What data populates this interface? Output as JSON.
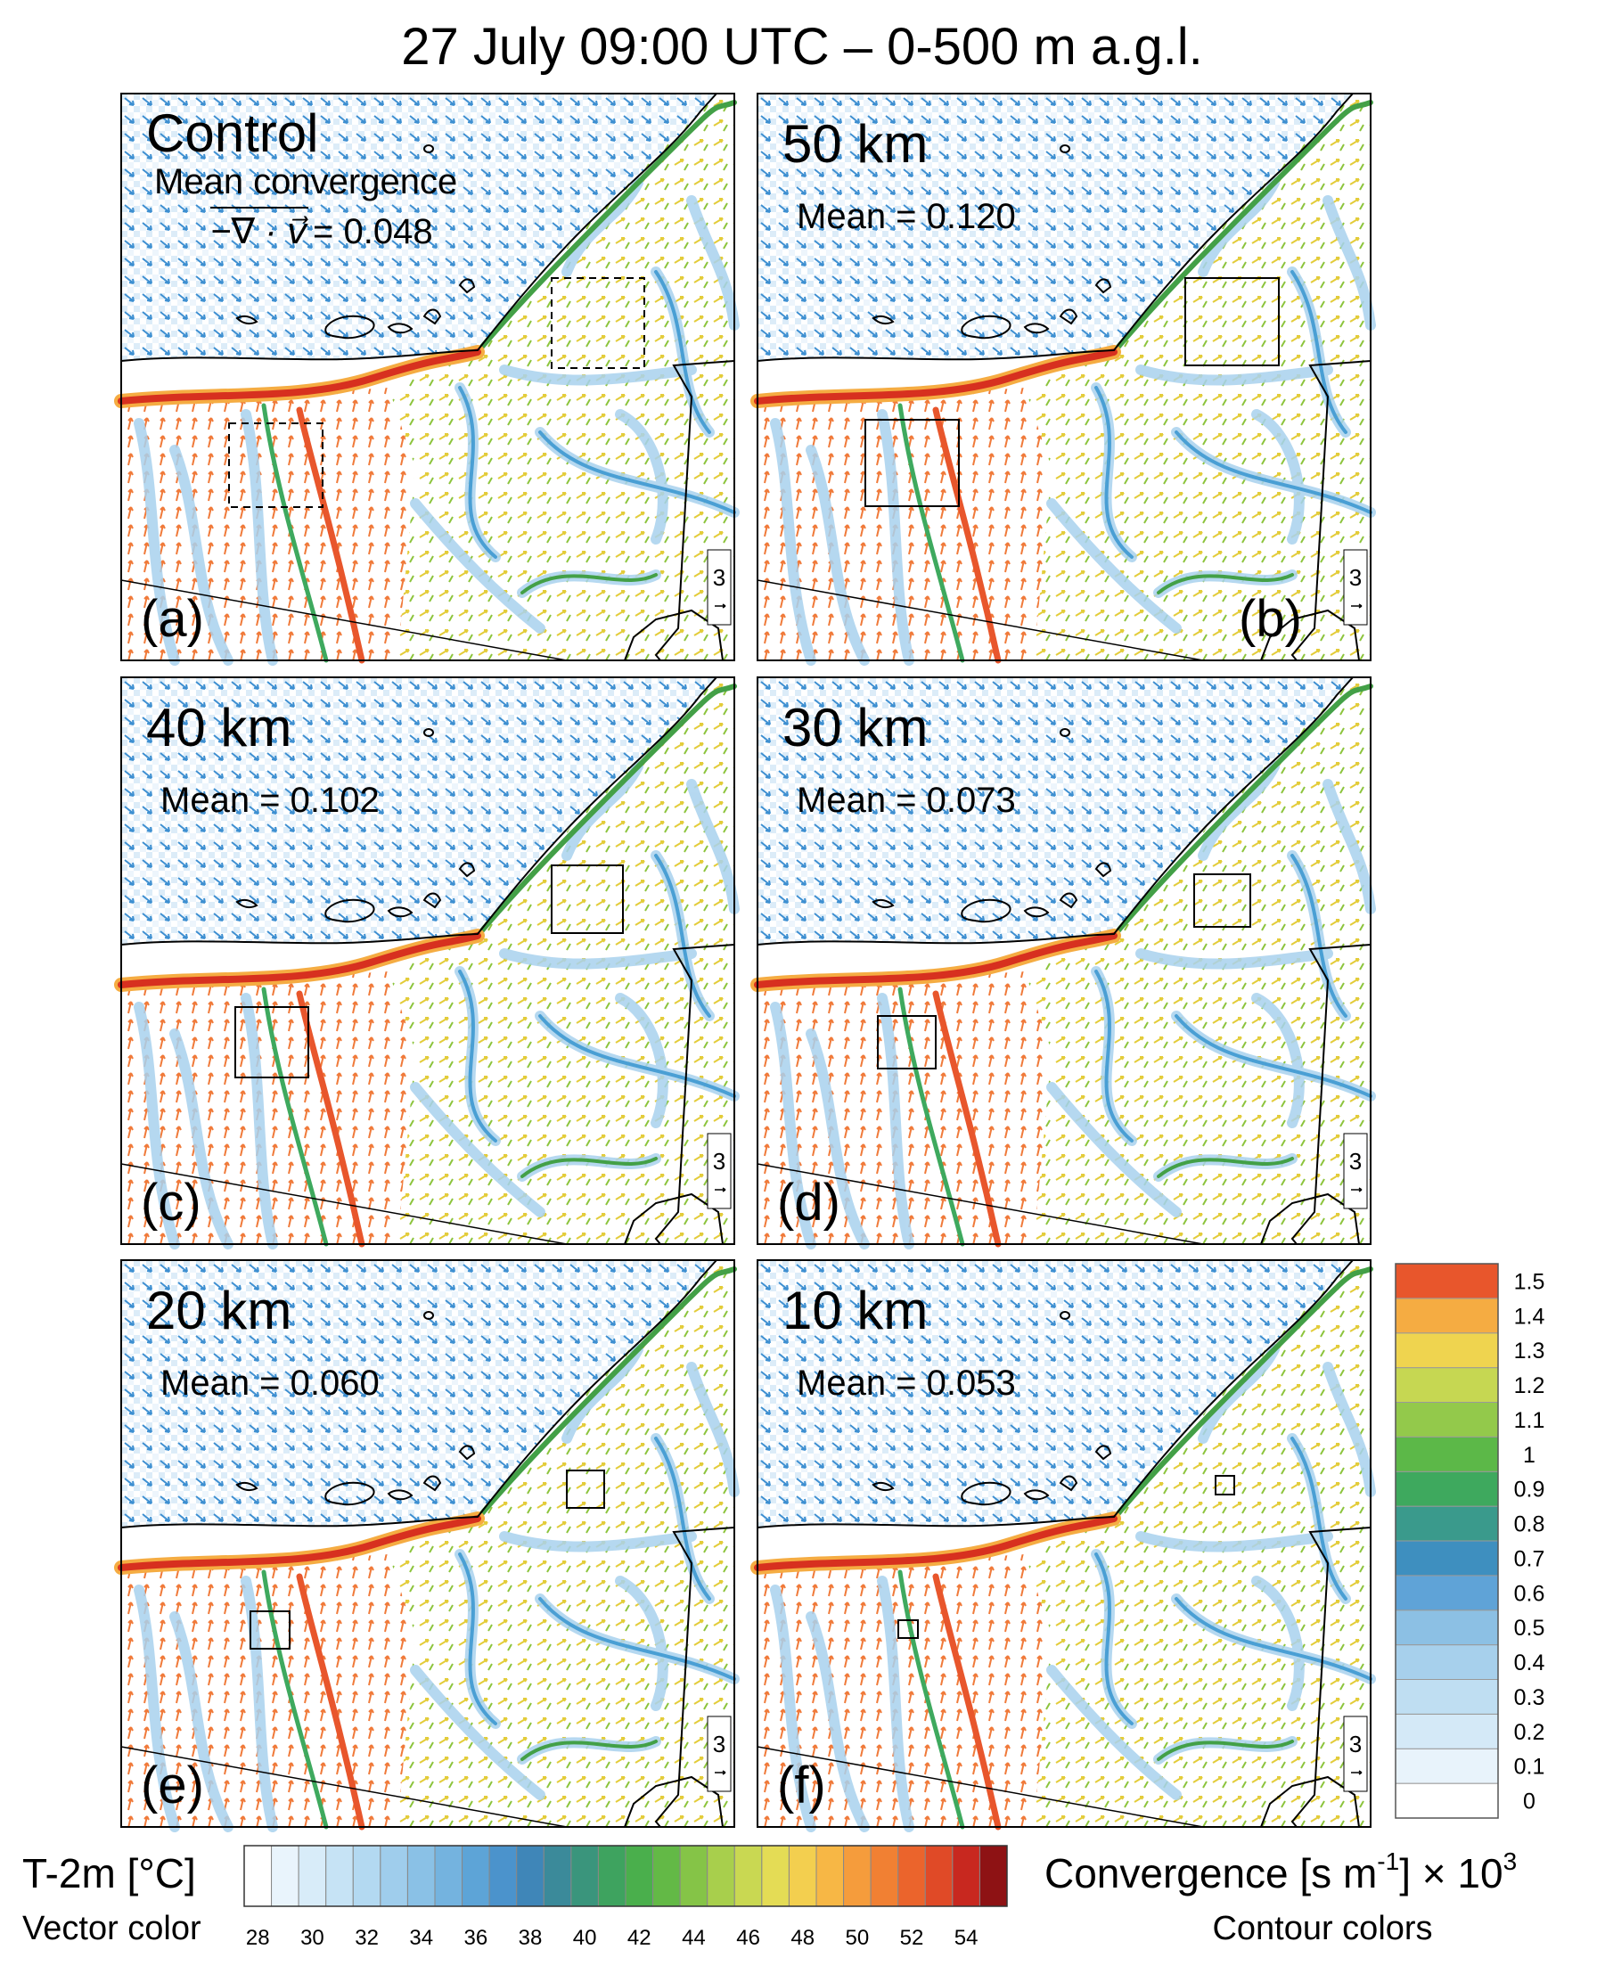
{
  "title": "27 July 09:00 UTC – 0-500 m a.g.l.",
  "panels": [
    {
      "name": "Control",
      "mean_title": "Mean convergence",
      "formula": "−∇ · v⃗",
      "mean": "= 0.048",
      "label": "(a)",
      "ref": "3"
    },
    {
      "name": "50 km",
      "mean": "Mean = 0.120",
      "label": "(b)",
      "ref": "3"
    },
    {
      "name": "40 km",
      "mean": "Mean = 0.102",
      "label": "(c)",
      "ref": "3"
    },
    {
      "name": "30 km",
      "mean": "Mean = 0.073",
      "label": "(d)",
      "ref": "3"
    },
    {
      "name": "20 km",
      "mean": "Mean = 0.060",
      "label": "(e)",
      "ref": "3"
    },
    {
      "name": "10 km",
      "mean": "Mean = 0.053",
      "label": "(f)",
      "ref": "3"
    }
  ],
  "temperature_bar": {
    "title": "T-2m [°C]",
    "subtitle": "Vector color",
    "ticks": [
      28,
      30,
      32,
      34,
      36,
      38,
      40,
      42,
      44,
      46,
      48,
      50,
      52,
      54
    ],
    "colors": [
      "#ffffff",
      "#e9f4fc",
      "#d8ecf9",
      "#c6e3f5",
      "#b3d9f1",
      "#9fcdec",
      "#8ac1e6",
      "#74b3df",
      "#5da4d7",
      "#4b93cc",
      "#3f86b8",
      "#3b8a9a",
      "#3a957c",
      "#3ea35f",
      "#4aaf4c",
      "#63b946",
      "#85c447",
      "#a8cf4c",
      "#c9d852",
      "#e4dc55",
      "#f3cf4f",
      "#f7b745",
      "#f59c3c",
      "#f18033",
      "#eb642c",
      "#e04a27",
      "#c8281f",
      "#8e1214"
    ]
  },
  "convergence_bar": {
    "title": [
      "Convergence [s m",
      "-1",
      "] × 10",
      "3"
    ],
    "subtitle": "Contour colors",
    "ticks": [
      0,
      0.1,
      0.2,
      0.3,
      0.4,
      0.5,
      0.6,
      0.7,
      0.8,
      0.9,
      1,
      1.1,
      1.2,
      1.3,
      1.4,
      1.5
    ],
    "colors": [
      "#ffffff",
      "#e8f3fb",
      "#d4e9f7",
      "#bfdef2",
      "#a7d0ec",
      "#8cc0e4",
      "#5fa3d7",
      "#3e8fbf",
      "#3a9a8c",
      "#3ea95e",
      "#5cb848",
      "#93c94b",
      "#c6d752",
      "#efd44f",
      "#f5ac42",
      "#e8562c"
    ]
  }
}
